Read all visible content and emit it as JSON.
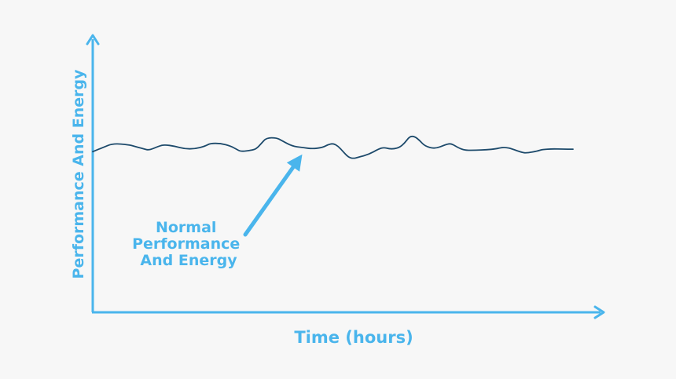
{
  "colors": {
    "background": "#f7f7f7",
    "axis": "#4ab5ec",
    "line": "#1d4a6b"
  },
  "chart_data": {
    "type": "line",
    "title": "",
    "xlabel": "Time (hours)",
    "ylabel": "Performance And Energy",
    "xlim": [
      0,
      100
    ],
    "ylim": [
      0,
      100
    ],
    "grid": false,
    "legend": "none",
    "annotation": {
      "lines": [
        "Normal",
        "Performance",
        "And Energy"
      ],
      "points_to": {
        "x": 41,
        "y": 59
      }
    },
    "series": [
      {
        "values": [
          [
            0,
            58
          ],
          [
            2,
            59.5
          ],
          [
            4,
            61
          ],
          [
            7,
            60.5
          ],
          [
            8,
            60
          ],
          [
            10,
            59
          ],
          [
            11,
            58.5
          ],
          [
            13,
            60
          ],
          [
            14,
            60.5
          ],
          [
            16,
            60
          ],
          [
            18,
            59
          ],
          [
            20,
            59
          ],
          [
            22,
            60
          ],
          [
            23,
            61
          ],
          [
            25,
            61
          ],
          [
            27,
            60
          ],
          [
            28,
            59
          ],
          [
            29,
            58
          ],
          [
            31,
            58.5
          ],
          [
            32,
            59
          ],
          [
            33,
            61
          ],
          [
            34,
            63
          ],
          [
            36,
            63
          ],
          [
            37,
            62
          ],
          [
            39,
            60
          ],
          [
            41,
            59.5
          ],
          [
            43,
            59
          ],
          [
            45,
            59.5
          ],
          [
            46,
            60.5
          ],
          [
            47,
            61
          ],
          [
            48,
            60
          ],
          [
            49,
            58
          ],
          [
            50,
            56
          ],
          [
            51,
            55.5
          ],
          [
            52,
            56
          ],
          [
            54,
            57
          ],
          [
            56,
            59
          ],
          [
            57,
            59.5
          ],
          [
            58,
            59
          ],
          [
            59,
            59
          ],
          [
            60,
            59.5
          ],
          [
            61,
            61
          ],
          [
            62,
            63.5
          ],
          [
            63,
            63.5
          ],
          [
            64,
            62
          ],
          [
            65,
            60
          ],
          [
            67,
            59
          ],
          [
            69,
            60.5
          ],
          [
            70,
            61
          ],
          [
            71,
            60
          ],
          [
            72,
            59
          ],
          [
            73,
            58.5
          ],
          [
            75,
            58.5
          ],
          [
            77,
            58.7
          ],
          [
            79,
            59
          ],
          [
            80,
            59.5
          ],
          [
            81,
            59.5
          ],
          [
            82,
            59
          ],
          [
            84,
            57.7
          ],
          [
            85,
            57.5
          ],
          [
            87,
            58.2
          ],
          [
            88,
            58.8
          ],
          [
            90,
            59
          ],
          [
            92,
            58.9
          ],
          [
            94,
            58.9
          ]
        ]
      }
    ]
  }
}
